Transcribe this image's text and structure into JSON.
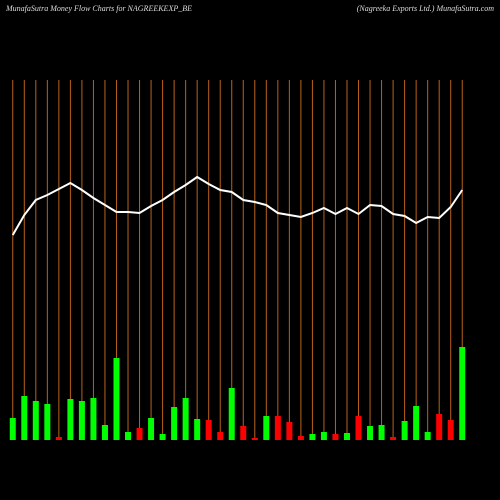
{
  "chart_data": {
    "type": "bar",
    "title": "MunafaSutra  Money Flow  Charts for NAGREEKEXP_BE",
    "subtitle": "(Nagreeka  Exports  Ltd.) MunafaSutra.com",
    "categories": [
      null,
      null,
      null,
      null,
      null,
      null,
      null,
      null,
      null,
      null,
      null,
      null,
      null,
      null,
      null,
      null,
      null,
      null,
      null,
      null,
      null,
      null,
      null,
      null,
      null,
      null,
      null,
      null,
      null,
      null,
      null,
      null,
      null,
      null,
      null,
      null,
      null,
      null,
      null,
      null
    ],
    "values": [
      22,
      44,
      39,
      36,
      3,
      41,
      39,
      42,
      15,
      82,
      8,
      12,
      22,
      6,
      33,
      42,
      21,
      20,
      8,
      52,
      14,
      2,
      24,
      24,
      18,
      4,
      6,
      8,
      6,
      7,
      24,
      14,
      15,
      3,
      19,
      34,
      8,
      26,
      20,
      93
    ],
    "colors": [
      "#00ff00",
      "#00ff00",
      "#00ff00",
      "#00ff00",
      "#ff0000",
      "#00ff00",
      "#00ff00",
      "#00ff00",
      "#00ff00",
      "#00ff00",
      "#00ff00",
      "#ff0000",
      "#00ff00",
      "#00ff00",
      "#00ff00",
      "#00ff00",
      "#00ff00",
      "#ff0000",
      "#ff0000",
      "#00ff00",
      "#ff0000",
      "#ff0000",
      "#00ff00",
      "#ff0000",
      "#ff0000",
      "#ff0000",
      "#00ff00",
      "#00ff00",
      "#ff0000",
      "#00ff00",
      "#ff0000",
      "#00ff00",
      "#00ff00",
      "#ff0000",
      "#00ff00",
      "#00ff00",
      "#00ff00",
      "#ff0000",
      "#ff0000",
      "#00ff00"
    ],
    "line": {
      "color": "#ffffff",
      "values": [
        205,
        225,
        240,
        245,
        251,
        257,
        250,
        242,
        235,
        228,
        228,
        227,
        234,
        240,
        248,
        255,
        263,
        256,
        250,
        248,
        240,
        238,
        235,
        227,
        225,
        223,
        227,
        232,
        226,
        232,
        226,
        235,
        234,
        226,
        224,
        217,
        223,
        222,
        233,
        250
      ]
    },
    "ylim": [
      0,
      360
    ],
    "grid_color": "#b8621b"
  }
}
